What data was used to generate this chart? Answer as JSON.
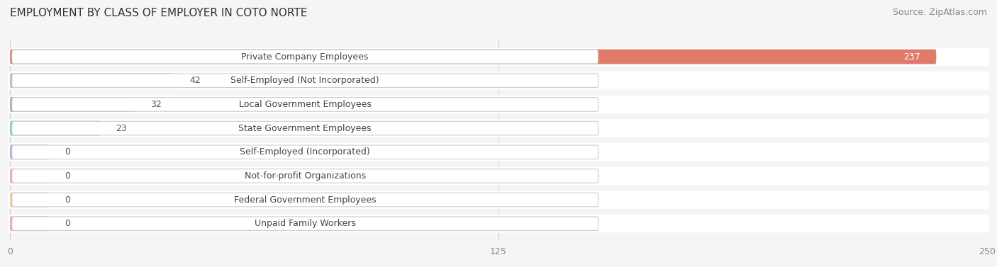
{
  "title": "EMPLOYMENT BY CLASS OF EMPLOYER IN COTO NORTE",
  "source": "Source: ZipAtlas.com",
  "categories": [
    "Private Company Employees",
    "Self-Employed (Not Incorporated)",
    "Local Government Employees",
    "State Government Employees",
    "Self-Employed (Incorporated)",
    "Not-for-profit Organizations",
    "Federal Government Employees",
    "Unpaid Family Workers"
  ],
  "values": [
    237,
    42,
    32,
    23,
    0,
    0,
    0,
    0
  ],
  "bar_colors": [
    "#e07b6a",
    "#a8b8d8",
    "#b89abe",
    "#7ec8c8",
    "#b0aed8",
    "#f4a0b0",
    "#f5c89a",
    "#f0a898"
  ],
  "label_box_color": "#ffffff",
  "label_box_edge_color": "#cccccc",
  "background_color": "#f5f5f5",
  "bar_background_color": "#ffffff",
  "xlim": [
    0,
    250
  ],
  "xticks": [
    0,
    125,
    250
  ],
  "title_fontsize": 11,
  "source_fontsize": 9,
  "label_fontsize": 9,
  "value_fontsize": 9,
  "tick_fontsize": 9
}
